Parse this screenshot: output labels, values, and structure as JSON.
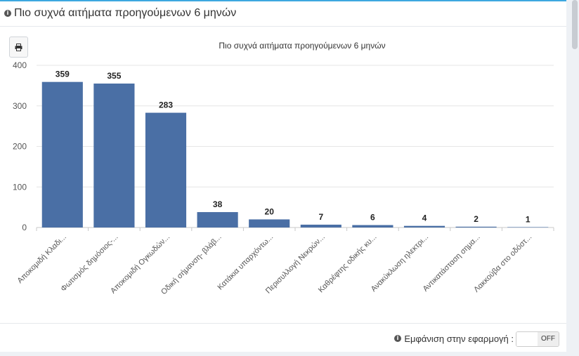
{
  "header": {
    "title": "Πιο συχνά αιτήματα προηγούμενων 6 μηνών"
  },
  "footer": {
    "label": "Εμφάνιση στην εφαρμογή :",
    "toggle_state": "OFF"
  },
  "chart_data": {
    "type": "bar",
    "title": "Πιο συχνά αιτήματα προηγούμενων 6 μηνών",
    "xlabel": "",
    "ylabel": "",
    "ylim": [
      0,
      400
    ],
    "yticks": [
      "0",
      "100",
      "200",
      "300",
      "400"
    ],
    "grid": true,
    "categories": [
      "Αποκομιδή Κλαδι...",
      "Φωτισμός δημόσιος-...",
      "Αποκομιδή Ογκωδών...",
      "Οδική σήμανση- βλάβ...",
      "Κατάκια υπαρχόντω...",
      "Περισυλλογή Νεκρών...",
      "Καθρέφτης οδικής κυ...",
      "Ανακύκλωση ηλεκτρι...",
      "Αντικατάσταση σημα...",
      "Λακκούβα στο οδόστ..."
    ],
    "values": [
      359,
      355,
      283,
      38,
      20,
      7,
      6,
      4,
      2,
      1
    ],
    "bar_color": "#4a6fa5"
  }
}
